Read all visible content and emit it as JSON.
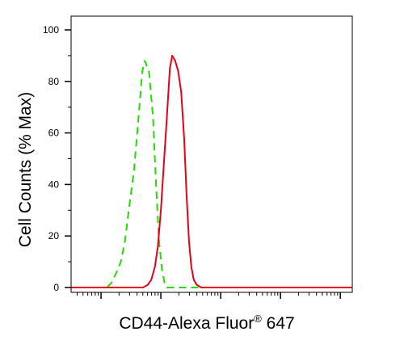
{
  "chart_data": {
    "type": "line",
    "title": "",
    "xlabel": "CD44-Alexa Fluor",
    "xlabel_superscript": "®",
    "xlabel_suffix": " 647",
    "ylabel": "Cell Counts (% Max)",
    "ylim": [
      0,
      100
    ],
    "y_ticks": [
      "0",
      "20",
      "40",
      "60",
      "80",
      "100"
    ],
    "x_scale": "log",
    "x_tick_labels": [],
    "grid": false,
    "legend": "none",
    "series": [
      {
        "style": "dashed",
        "color": "#22dd00",
        "x": [
          -0.5,
          -0.1,
          0.1,
          0.18,
          0.26,
          0.33,
          0.4,
          0.48,
          0.55,
          0.62,
          0.69,
          0.73,
          0.8,
          0.87,
          0.92,
          0.97,
          1.02,
          1.06,
          1.1,
          1.16,
          1.25,
          1.4,
          1.6,
          2.0,
          3.0,
          4.0,
          4.2
        ],
        "y": [
          0,
          0,
          0,
          2,
          6,
          10,
          18,
          33,
          45,
          64,
          84,
          88,
          84,
          66,
          40,
          18,
          7,
          2,
          0,
          0,
          0,
          0,
          0,
          0,
          0,
          0,
          0
        ]
      },
      {
        "style": "solid",
        "color": "#e8001a",
        "x": [
          -0.5,
          0.0,
          0.5,
          0.7,
          0.78,
          0.84,
          0.9,
          0.95,
          1.0,
          1.05,
          1.1,
          1.15,
          1.19,
          1.24,
          1.29,
          1.34,
          1.39,
          1.43,
          1.47,
          1.51,
          1.55,
          1.6,
          1.68,
          1.8,
          2.0,
          2.5,
          3.0,
          4.0,
          4.2
        ],
        "y": [
          0,
          0,
          0,
          0,
          1,
          3,
          8,
          16,
          30,
          48,
          66,
          85,
          90,
          88,
          84,
          76,
          58,
          36,
          18,
          8,
          3,
          1,
          0,
          0,
          0,
          0,
          0,
          0,
          0
        ]
      }
    ]
  }
}
